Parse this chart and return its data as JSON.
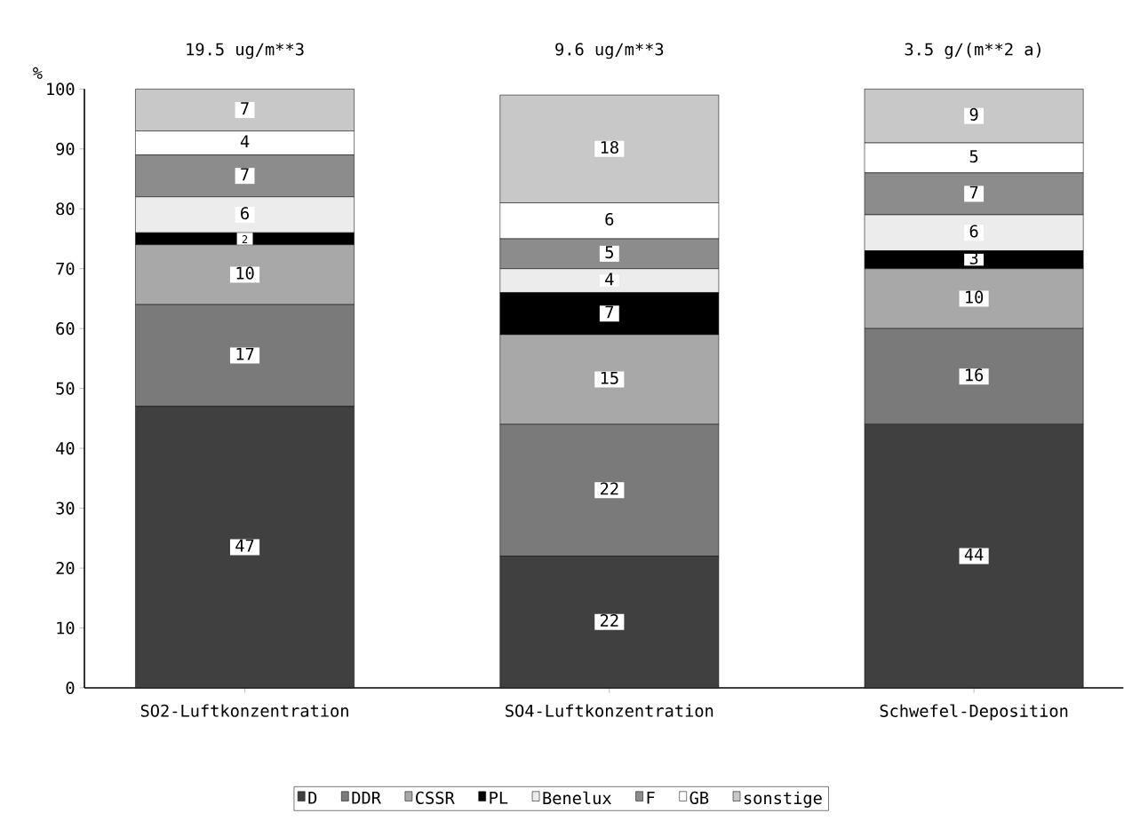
{
  "chart_data": {
    "type": "bar",
    "stacked": true,
    "ylabel": "%",
    "categories": [
      "SO2-Luftkonzentration",
      "SO4-Luftkonzentration",
      "Schwefel-Deposition"
    ],
    "series": [
      {
        "name": "D",
        "color": "#404040",
        "values": [
          47,
          22,
          44
        ]
      },
      {
        "name": "DDR",
        "color": "#7a7a7a",
        "values": [
          17,
          22,
          16
        ]
      },
      {
        "name": "CSSR",
        "color": "#a8a8a8",
        "values": [
          10,
          15,
          10
        ]
      },
      {
        "name": "PL",
        "color": "#000000",
        "values": [
          2,
          7,
          3
        ]
      },
      {
        "name": "Benelux",
        "color": "#ececec",
        "values": [
          6,
          4,
          6
        ]
      },
      {
        "name": "F",
        "color": "#8c8c8c",
        "values": [
          7,
          5,
          7
        ]
      },
      {
        "name": "GB",
        "color": "#ffffff",
        "values": [
          4,
          6,
          5
        ]
      },
      {
        "name": "sonstige",
        "color": "#c8c8c8",
        "values": [
          7,
          18,
          9
        ]
      }
    ],
    "ylim": [
      0,
      100
    ],
    "yticks": [
      0,
      10,
      20,
      30,
      40,
      50,
      60,
      70,
      80,
      90,
      100
    ],
    "annotations": [
      "19.5 ug/m**3",
      "9.6 ug/m**3",
      "3.5 g/(m**2 a)"
    ],
    "data_labels": true,
    "legend": "bottom",
    "grid": false
  }
}
